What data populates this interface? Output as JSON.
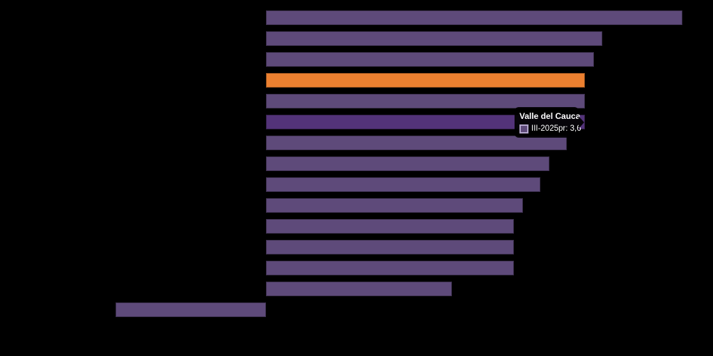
{
  "background_color": "#000000",
  "colors": {
    "bar_default": "#5e4a7a",
    "bar_highlight": "#533379",
    "bar_accent": "#ec8030",
    "bar_border": "rgba(0,0,0,0.35)",
    "tooltip_bg": "#000000",
    "tooltip_text": "#ffffff",
    "tooltip_swatch_border": "#b3a6cc"
  },
  "tooltip": {
    "title": "Valle del Cauca",
    "series_label": "III-2025pr",
    "value_text": "3,6",
    "line_text": "III-2025pr: 3,6"
  },
  "chart_data": {
    "type": "bar",
    "orientation": "horizontal",
    "series": [
      {
        "name": "III-2025pr",
        "values": [
          4.7,
          3.8,
          3.7,
          3.6,
          3.6,
          3.6,
          3.4,
          3.2,
          3.1,
          2.9,
          2.8,
          2.8,
          2.8,
          2.1,
          -1.7
        ]
      }
    ],
    "categories": [
      null,
      null,
      null,
      null,
      null,
      "Valle del Cauca",
      null,
      null,
      null,
      null,
      null,
      null,
      null,
      null,
      null
    ],
    "highlighted_index": 5,
    "accent_index": 3,
    "highlighted_value": 3.6,
    "value_decimal_format": "comma",
    "xlim": [
      -1.7,
      4.7
    ],
    "axis_labels_visible": false,
    "grid": false,
    "legend_position": "none",
    "title": "",
    "xlabel": "",
    "ylabel": ""
  }
}
